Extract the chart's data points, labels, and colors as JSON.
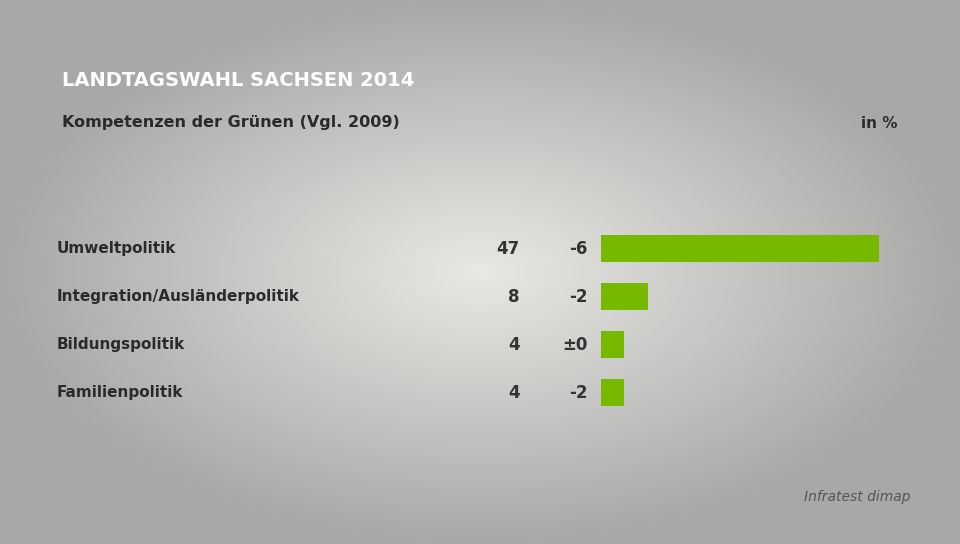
{
  "title_banner": "LANDTAGSWAHL SACHSEN 2014",
  "subtitle": "Kompetenzen der Grünen (Vgl. 2009)",
  "unit_label": "in %",
  "source": "Infratest dimap",
  "categories": [
    "Umweltpolitik",
    "Integration/Ausländerpolitik",
    "Bildungspolitik",
    "Familienpolitik"
  ],
  "values": [
    47,
    8,
    4,
    4
  ],
  "changes": [
    "-6",
    "-2",
    "±0",
    "-2"
  ],
  "bar_color": "#76b900",
  "bg_color_center": "#e8e8e4",
  "bg_color_edge": "#b0b0aa",
  "banner_color": "#1a3a6b",
  "banner_text_color": "#ffffff",
  "subtitle_bg": "#f5f5f5",
  "subtitle_color": "#2a2a2a",
  "row_bg_color": "#ffffff",
  "row_border_color": "#cccccc",
  "label_color": "#2a2a2a",
  "value_color": "#333333",
  "source_color": "#555555",
  "max_bar_value": 47,
  "fig_width": 9.6,
  "fig_height": 5.44,
  "dpi": 100
}
